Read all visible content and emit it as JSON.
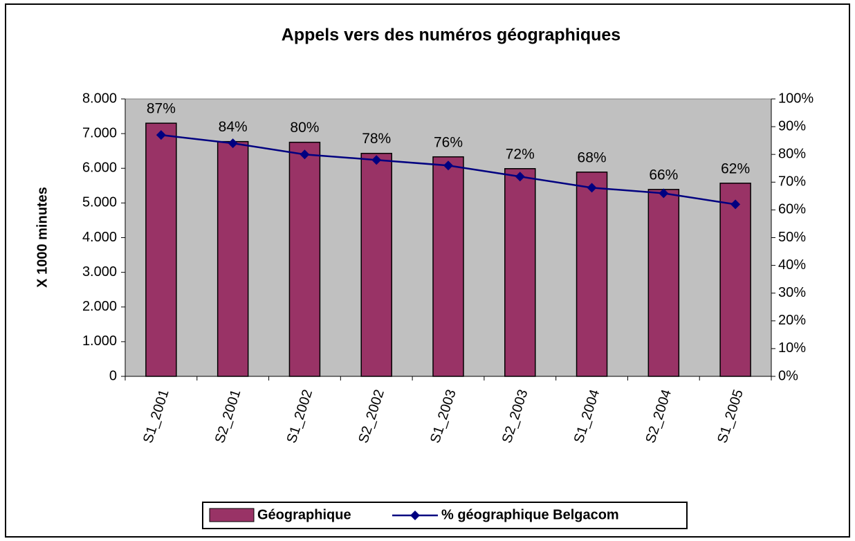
{
  "chart_data": {
    "type": "bar_line",
    "title": "Appels vers des numéros géographiques",
    "y_label": "X 1000 minutes",
    "categories": [
      "S1_2001",
      "S2_2001",
      "S1_2002",
      "S2_2002",
      "S1_2003",
      "S2_2003",
      "S1_2004",
      "S2_2004",
      "S1_2005"
    ],
    "series": [
      {
        "name": "Géographique",
        "type": "bar",
        "color": "#993366",
        "axis": "y",
        "values": [
          7300,
          6770,
          6750,
          6430,
          6330,
          5990,
          5890,
          5390,
          5570
        ]
      },
      {
        "name": "% géographique Belgacom",
        "type": "line",
        "color": "#000080",
        "axis": "y2",
        "values": [
          87,
          84,
          80,
          78,
          76,
          72,
          68,
          66,
          62
        ],
        "value_labels": [
          "87%",
          "84%",
          "80%",
          "78%",
          "76%",
          "72%",
          "68%",
          "66%",
          "62%"
        ]
      }
    ],
    "ylim": [
      0,
      8000
    ],
    "yticks": [
      0,
      {
        "value": 1000,
        "label": "1.000"
      },
      {
        "value": 2000,
        "label": "2.000"
      },
      {
        "value": 3000,
        "label": "3.000"
      },
      {
        "value": 4000,
        "label": "4.000"
      },
      {
        "value": 5000,
        "label": "5.000"
      },
      {
        "value": 6000,
        "label": "6.000"
      },
      {
        "value": 7000,
        "label": "7.000"
      },
      {
        "value": 8000,
        "label": "8.000"
      }
    ],
    "y2lim": [
      0,
      100
    ],
    "y2ticks": [
      {
        "value": 0,
        "label": "0%"
      },
      {
        "value": 10,
        "label": "10%"
      },
      {
        "value": 20,
        "label": "20%"
      },
      {
        "value": 30,
        "label": "30%"
      },
      {
        "value": 40,
        "label": "40%"
      },
      {
        "value": 50,
        "label": "50%"
      },
      {
        "value": 60,
        "label": "60%"
      },
      {
        "value": 70,
        "label": "70%"
      },
      {
        "value": 80,
        "label": "80%"
      },
      {
        "value": 90,
        "label": "90%"
      },
      {
        "value": 100,
        "label": "100%"
      }
    ],
    "grid": false,
    "legend": "bottom",
    "plot_background": "#c0c0c0"
  }
}
